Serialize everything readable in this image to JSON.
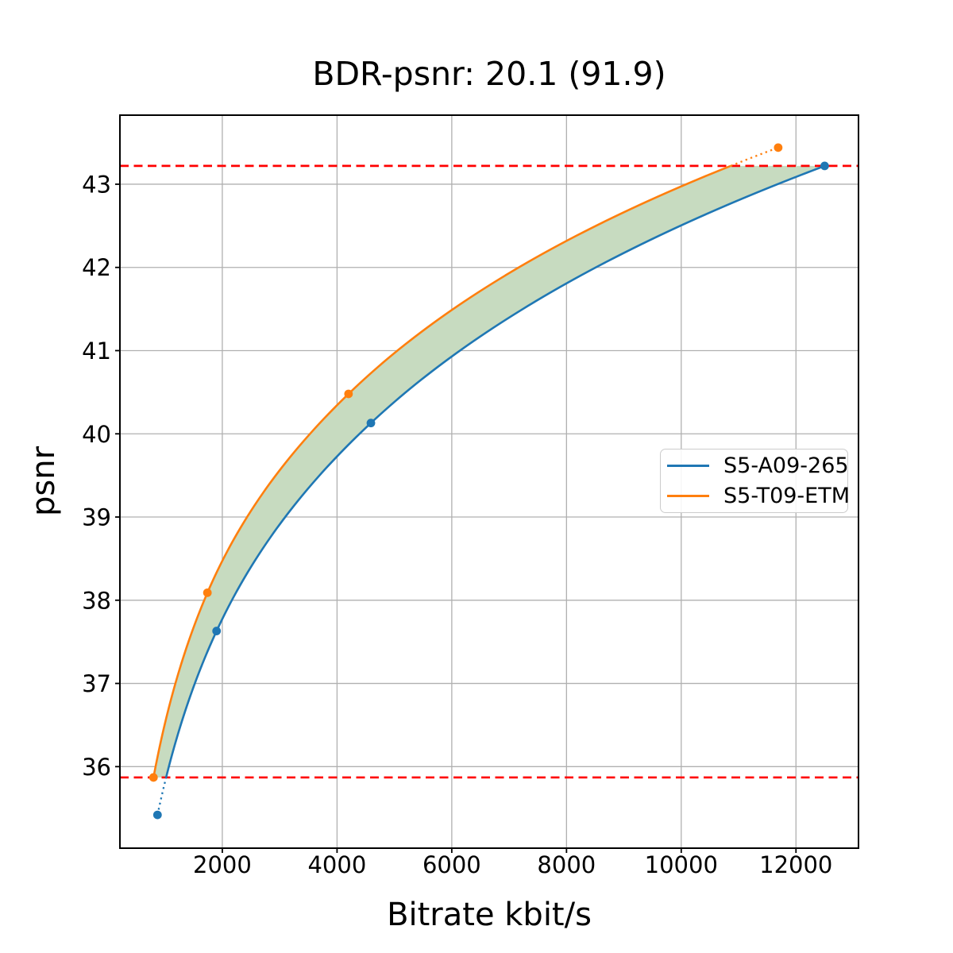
{
  "chart_data": {
    "type": "line",
    "title": "BDR-psnr: 20.1 (91.9)",
    "xlabel": "Bitrate kbit/s",
    "ylabel": "psnr",
    "xlim": [
      215,
      13090
    ],
    "ylim": [
      35.02,
      43.83
    ],
    "xticks": [
      2000,
      4000,
      6000,
      8000,
      10000,
      12000
    ],
    "yticks": [
      36,
      37,
      38,
      39,
      40,
      41,
      42,
      43
    ],
    "grid": true,
    "grid_color": "#b0b0b0",
    "series": [
      {
        "name": "S5-A09-265",
        "color": "#1f77b4",
        "points": [
          [
            870,
            35.42
          ],
          [
            1900,
            37.63
          ],
          [
            4590,
            40.13
          ],
          [
            12500,
            43.22
          ]
        ]
      },
      {
        "name": "S5-T09-ETM",
        "color": "#ff7f0e",
        "points": [
          [
            800,
            35.87
          ],
          [
            1740,
            38.09
          ],
          [
            4200,
            40.48
          ],
          [
            11690,
            43.44
          ]
        ]
      }
    ],
    "overlap_psnr": [
      35.87,
      43.22
    ],
    "hlines": {
      "values": [
        35.87,
        43.22
      ],
      "color": "#ff0000",
      "style": "dashed"
    },
    "band_color": "#c7dbc0",
    "legend_position": "center right"
  }
}
